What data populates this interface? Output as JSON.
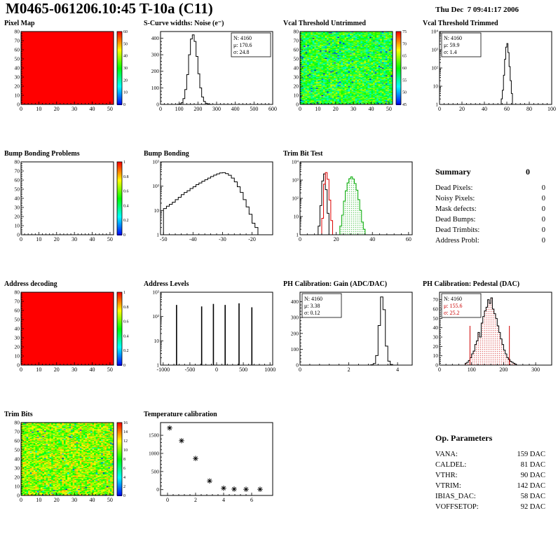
{
  "header": {
    "title": "M0465-061206.10:45 T-10a (C11)",
    "datetime": "Thu Dec  7 09:41:17 2006"
  },
  "summary": {
    "title": "Summary",
    "total": "0",
    "rows": [
      {
        "label": "Dead Pixels:",
        "value": "0"
      },
      {
        "label": "Noisy Pixels:",
        "value": "0"
      },
      {
        "label": "Mask defects:",
        "value": "0"
      },
      {
        "label": "Dead Bumps:",
        "value": "0"
      },
      {
        "label": "Dead Trimbits:",
        "value": "0"
      },
      {
        "label": "Address Probl:",
        "value": "0"
      }
    ]
  },
  "op": {
    "title": "Op. Parameters",
    "rows": [
      {
        "label": "VANA:",
        "value": "159 DAC"
      },
      {
        "label": "CALDEL:",
        "value": "81 DAC"
      },
      {
        "label": "VTHR:",
        "value": "90 DAC"
      },
      {
        "label": "VTRIM:",
        "value": "142 DAC"
      },
      {
        "label": "IBIAS_DAC:",
        "value": "58 DAC"
      },
      {
        "label": "VOFFSETOP:",
        "value": "92 DAC"
      }
    ]
  },
  "chart_data": [
    {
      "id": "pixel-map",
      "type": "heatmap",
      "title": "Pixel Map",
      "xrange": [
        0,
        52
      ],
      "yrange": [
        0,
        80
      ],
      "xticks": [
        0,
        10,
        20,
        30,
        40,
        50
      ],
      "yticks": [
        0,
        10,
        20,
        30,
        40,
        50,
        60,
        70,
        80
      ],
      "heat": {
        "pattern": "uniform",
        "value": 1,
        "nx": 52,
        "ny": 80
      },
      "colorbar": [
        0,
        10,
        20,
        30,
        40,
        50,
        60
      ]
    },
    {
      "id": "scurve-noise",
      "type": "hist",
      "title": "S-Curve widths: Noise (e⁻)",
      "xrange": [
        0,
        600
      ],
      "yrange": [
        0,
        440
      ],
      "xticks": [
        0,
        100,
        200,
        300,
        400,
        500,
        600
      ],
      "yticks": [
        0,
        100,
        200,
        300,
        400
      ],
      "series": [
        {
          "color": "#000000",
          "x0": 0,
          "dx": 10,
          "values": [
            0,
            0,
            0,
            0,
            0,
            0,
            0,
            0,
            0,
            1,
            3,
            10,
            35,
            90,
            180,
            300,
            395,
            420,
            380,
            290,
            185,
            100,
            45,
            18,
            7,
            3,
            1,
            0,
            0,
            0,
            0,
            0,
            0,
            0,
            0,
            0,
            0,
            0,
            0,
            0,
            0,
            0,
            0,
            0,
            0,
            0,
            0,
            0,
            0,
            0,
            0,
            0,
            0,
            0,
            0,
            0,
            0,
            0,
            0,
            0
          ]
        }
      ],
      "stats": {
        "pos": "tr",
        "lines": [
          {
            "t": "N: 4160",
            "c": "#000000"
          },
          {
            "t": "μ: 170.6",
            "c": "#000000"
          },
          {
            "t": "σ: 24.8",
            "c": "#000000"
          }
        ]
      }
    },
    {
      "id": "vcal-threshold-untrimmed",
      "type": "heatmap",
      "title": "Vcal Threshold Untrimmed",
      "xrange": [
        0,
        52
      ],
      "yrange": [
        0,
        80
      ],
      "xticks": [
        0,
        10,
        20,
        30,
        40,
        50
      ],
      "yticks": [
        0,
        10,
        20,
        30,
        40,
        50,
        60,
        70,
        80
      ],
      "heat": {
        "pattern": "noise",
        "nx": 52,
        "ny": 80,
        "seed": 7,
        "mean": 0.5,
        "spread": 0.2,
        "speckle": 0.05,
        "speckleDelta": -0.35
      },
      "colorbar": [
        45,
        50,
        55,
        60,
        65,
        70,
        75
      ]
    },
    {
      "id": "vcal-threshold-trimmed",
      "type": "hist",
      "title": "Vcal Threshold Trimmed",
      "ylog": true,
      "emax": 4,
      "xrange": [
        0,
        100
      ],
      "xticks": [
        0,
        20,
        40,
        60,
        80,
        100
      ],
      "series": [
        {
          "color": "#000000",
          "x0": 50,
          "dx": 1,
          "values": [
            0,
            0,
            0,
            0,
            1,
            2,
            6,
            40,
            300,
            1400,
            2200,
            700,
            120,
            20,
            4,
            1,
            0,
            0,
            0,
            0
          ]
        }
      ],
      "stats": {
        "pos": "tl",
        "lines": [
          {
            "t": "N: 4160",
            "c": "#000000"
          },
          {
            "t": "μ: 59.9",
            "c": "#000000"
          },
          {
            "t": "σ: 1.4",
            "c": "#000000"
          }
        ]
      }
    },
    {
      "id": "bump-bonding-problems",
      "type": "heatmap",
      "title": "Bump Bonding Problems",
      "xrange": [
        0,
        52
      ],
      "yrange": [
        0,
        80
      ],
      "xticks": [
        0,
        10,
        20,
        30,
        40,
        50
      ],
      "yticks": [
        0,
        10,
        20,
        30,
        40,
        50,
        60,
        70,
        80
      ],
      "heat": {
        "pattern": "empty",
        "nx": 52,
        "ny": 80
      },
      "colorbar": [
        0,
        0.2,
        0.4,
        0.6,
        0.8,
        1
      ]
    },
    {
      "id": "bump-bonding",
      "type": "hist",
      "title": "Bump Bonding",
      "ylog": true,
      "emax": 3,
      "xrange": [
        -51,
        -13
      ],
      "xticks": [
        -50,
        -40,
        -30,
        -20
      ],
      "series": [
        {
          "color": "#000000",
          "x0": -50,
          "dx": 1,
          "values": [
            12,
            15,
            18,
            22,
            28,
            35,
            45,
            55,
            65,
            80,
            95,
            115,
            135,
            160,
            185,
            215,
            250,
            285,
            320,
            350,
            360,
            330,
            280,
            215,
            150,
            95,
            55,
            28,
            14,
            7,
            3,
            2,
            1,
            1,
            0
          ]
        }
      ]
    },
    {
      "id": "trim-bit-test",
      "type": "hist",
      "title": "Trim Bit Test",
      "ylog": true,
      "emax": 4,
      "xrange": [
        0,
        62
      ],
      "xticks": [
        0,
        20,
        40,
        60
      ],
      "series": [
        {
          "color": "#000000",
          "x0": 0,
          "dx": 1,
          "values": [
            0,
            0,
            0,
            0,
            0,
            0,
            0,
            0,
            0,
            0,
            3,
            40,
            900,
            2200,
            300,
            15,
            0,
            0,
            0,
            0,
            0,
            0,
            0,
            0,
            0,
            0,
            0,
            0,
            0,
            0,
            0,
            0,
            0,
            0,
            0,
            0,
            0,
            0,
            0,
            0,
            0,
            0,
            0,
            0,
            0,
            0,
            0,
            0,
            0,
            0,
            0,
            0,
            0,
            0,
            0,
            0,
            0,
            0,
            0,
            0,
            0
          ]
        },
        {
          "color": "#dd0000",
          "x0": 0,
          "dx": 1,
          "values": [
            0,
            0,
            0,
            0,
            0,
            0,
            0,
            0,
            0,
            0,
            0,
            0,
            8,
            600,
            2600,
            1100,
            80,
            6,
            0,
            0,
            0,
            0,
            0,
            0,
            0,
            0,
            0,
            0,
            0,
            0,
            0,
            0,
            0,
            0,
            0,
            0,
            0,
            0,
            0,
            0,
            0,
            0,
            0,
            0,
            0,
            0,
            0,
            0,
            0,
            0,
            0,
            0,
            0,
            0,
            0,
            0,
            0,
            0,
            0,
            0,
            0
          ]
        },
        {
          "color": "#00aa00",
          "x0": 0,
          "dx": 1,
          "fill": "dots",
          "fillColor": "#00aa00",
          "values": [
            0,
            0,
            0,
            0,
            0,
            0,
            0,
            0,
            0,
            0,
            0,
            0,
            0,
            0,
            0,
            0,
            0,
            0,
            0,
            0,
            0,
            0,
            3,
            12,
            70,
            260,
            700,
            1200,
            1500,
            1150,
            650,
            280,
            85,
            22,
            5,
            2,
            0,
            0,
            0,
            0,
            0,
            0,
            0,
            0,
            0,
            0,
            0,
            0,
            0,
            0,
            0,
            0,
            0,
            0,
            0,
            0,
            0,
            0,
            0,
            0,
            0
          ]
        }
      ]
    },
    {
      "id": "address-decoding",
      "type": "heatmap",
      "title": "Address decoding",
      "xrange": [
        0,
        52
      ],
      "yrange": [
        0,
        80
      ],
      "xticks": [
        0,
        10,
        20,
        30,
        40,
        50
      ],
      "yticks": [
        0,
        10,
        20,
        30,
        40,
        50,
        60,
        70,
        80
      ],
      "heat": {
        "pattern": "uniform",
        "value": 1,
        "nx": 52,
        "ny": 80
      },
      "colorbar": [
        0,
        0.2,
        0.4,
        0.6,
        0.8,
        1
      ]
    },
    {
      "id": "address-levels",
      "type": "spikes",
      "title": "Address Levels",
      "ylog": true,
      "emax": 3,
      "xrange": [
        -1050,
        1050
      ],
      "xticks": [
        -1000,
        -500,
        0,
        500,
        1000
      ],
      "spikes": [
        [
          -750,
          300
        ],
        [
          -280,
          260
        ],
        [
          -60,
          330
        ],
        [
          160,
          300
        ],
        [
          420,
          350
        ],
        [
          660,
          240
        ]
      ]
    },
    {
      "id": "ph-gain",
      "type": "hist",
      "title": "PH Calibration: Gain (ADC/DAC)",
      "xrange": [
        0,
        4.6
      ],
      "yrange": [
        0,
        460
      ],
      "xticks": [
        0,
        2,
        4
      ],
      "yticks": [
        0,
        100,
        200,
        300,
        400
      ],
      "series": [
        {
          "color": "#000000",
          "x0": 0,
          "dx": 0.1,
          "values": [
            0,
            0,
            0,
            0,
            0,
            0,
            0,
            0,
            0,
            0,
            0,
            0,
            0,
            0,
            0,
            0,
            0,
            0,
            0,
            0,
            0,
            0,
            0,
            0,
            0,
            0,
            0,
            0,
            0,
            2,
            10,
            60,
            250,
            430,
            350,
            120,
            25,
            4,
            0,
            0,
            0,
            0,
            0,
            0,
            0,
            0
          ]
        }
      ],
      "stats": {
        "pos": "tl",
        "lines": [
          {
            "t": "N: 4160",
            "c": "#000000"
          },
          {
            "t": "μ: 3.38",
            "c": "#000000"
          },
          {
            "t": "σ: 0.12",
            "c": "#000000"
          }
        ]
      }
    },
    {
      "id": "ph-pedestal",
      "type": "hist",
      "title": "PH Calibration: Pedestal (DAC)",
      "xrange": [
        0,
        350
      ],
      "yrange": [
        0,
        78
      ],
      "xticks": [
        0,
        100,
        200,
        300
      ],
      "yticks": [
        0,
        10,
        20,
        30,
        40,
        50,
        60,
        70
      ],
      "series": [
        {
          "color": "#000000",
          "x0": 0,
          "dx": 5,
          "fill": "dots",
          "fillColor": "#cc0000",
          "values": [
            0,
            0,
            0,
            0,
            0,
            0,
            0,
            0,
            0,
            0,
            0,
            0,
            0,
            0,
            0,
            0,
            2,
            3,
            5,
            8,
            12,
            15,
            22,
            26,
            35,
            30,
            45,
            52,
            58,
            62,
            70,
            66,
            72,
            60,
            55,
            50,
            42,
            35,
            28,
            22,
            16,
            12,
            8,
            6,
            4,
            3,
            2,
            1,
            0,
            0,
            0,
            0,
            0,
            0,
            0,
            0,
            0,
            0,
            0,
            0,
            0,
            0,
            0,
            0,
            0,
            0,
            0,
            0,
            0,
            0
          ]
        }
      ],
      "vlines": [
        {
          "x": 95,
          "h": 42,
          "color": "#cc0000"
        },
        {
          "x": 218,
          "h": 42,
          "color": "#cc0000"
        }
      ],
      "stats": {
        "pos": "tl",
        "lines": [
          {
            "t": "N: 4160",
            "c": "#000000"
          },
          {
            "t": "μ: 155.6",
            "c": "#cc0000"
          },
          {
            "t": "σ: 25.2",
            "c": "#cc0000"
          }
        ]
      }
    },
    {
      "id": "trim-bits",
      "type": "heatmap",
      "title": "Trim Bits",
      "xrange": [
        0,
        52
      ],
      "yrange": [
        0,
        80
      ],
      "xticks": [
        0,
        10,
        20,
        30,
        40,
        50
      ],
      "yticks": [
        0,
        10,
        20,
        30,
        40,
        50,
        60,
        70,
        80
      ],
      "heat": {
        "pattern": "noise",
        "nx": 52,
        "ny": 80,
        "seed": 13,
        "mean": 0.64,
        "spread": 0.2,
        "speckle": 0.02,
        "speckleDelta": -0.45
      },
      "colorbar": [
        0,
        2,
        4,
        6,
        8,
        10,
        12,
        14,
        16
      ]
    },
    {
      "id": "temperature-calibration",
      "type": "scatter",
      "title": "Temperature calibration",
      "xrange": [
        -0.5,
        7.5
      ],
      "yrange": [
        -160,
        1850
      ],
      "xticks": [
        0,
        2,
        4,
        6
      ],
      "yticks": [
        0,
        500,
        1000,
        1500
      ],
      "points": [
        [
          0.15,
          1700
        ],
        [
          1,
          1350
        ],
        [
          2,
          860
        ],
        [
          3,
          240
        ],
        [
          4,
          40
        ],
        [
          4.75,
          15
        ],
        [
          5.6,
          10
        ],
        [
          6.6,
          10
        ]
      ]
    }
  ]
}
